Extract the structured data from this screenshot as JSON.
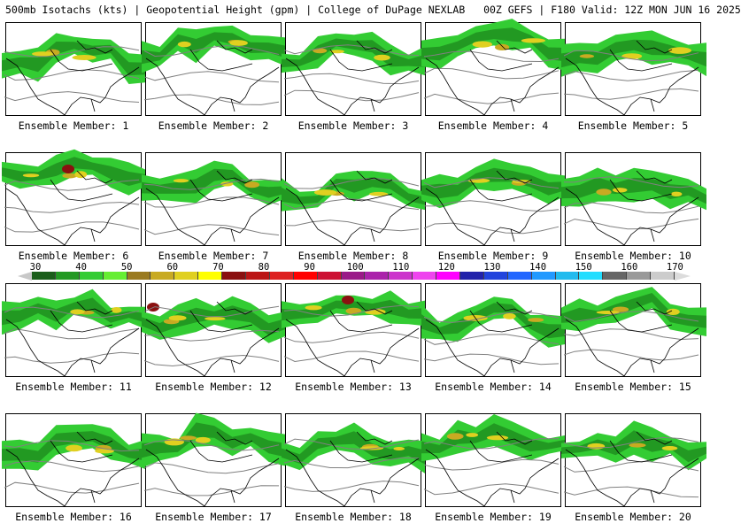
{
  "header": {
    "title": "500mb Isotachs (kts) | Geopotential Height (gpm) | College of DuPage NEXLAB",
    "run": "00Z GEFS | F180 Valid: 12Z MON JUN 16 2025"
  },
  "legend": {
    "ticks": [
      "30",
      "40",
      "50",
      "60",
      "70",
      "80",
      "90",
      "100",
      "110",
      "120",
      "130",
      "140",
      "150",
      "160",
      "170"
    ],
    "colors": [
      "#1a5e1a",
      "#229922",
      "#33cc33",
      "#66ee33",
      "#9a7a20",
      "#c8aa22",
      "#e0d020",
      "#ffff00",
      "#8a1010",
      "#bb1515",
      "#dd2020",
      "#ff0000",
      "#cc1133",
      "#9a1a88",
      "#aa22aa",
      "#cc33cc",
      "#ee44ee",
      "#ff00ff",
      "#2222aa",
      "#2244dd",
      "#2266ff",
      "#2299ff",
      "#22bbee",
      "#22ddff",
      "#666666",
      "#999999",
      "#cccccc"
    ]
  },
  "panels": [
    {
      "label": "Ensemble Member: 1"
    },
    {
      "label": "Ensemble Member: 2"
    },
    {
      "label": "Ensemble Member: 3"
    },
    {
      "label": "Ensemble Member: 4"
    },
    {
      "label": "Ensemble Member: 5"
    },
    {
      "label": "Ensemble Member: 6"
    },
    {
      "label": "Ensemble Member: 7"
    },
    {
      "label": "Ensemble Member: 8"
    },
    {
      "label": "Ensemble Member: 9"
    },
    {
      "label": "Ensemble Member: 10"
    },
    {
      "label": "Ensemble Member: 11"
    },
    {
      "label": "Ensemble Member: 12"
    },
    {
      "label": "Ensemble Member: 13"
    },
    {
      "label": "Ensemble Member: 14"
    },
    {
      "label": "Ensemble Member: 15"
    },
    {
      "label": "Ensemble Member: 16"
    },
    {
      "label": "Ensemble Member: 17"
    },
    {
      "label": "Ensemble Member: 18"
    },
    {
      "label": "Ensemble Member: 19"
    },
    {
      "label": "Ensemble Member: 20"
    }
  ]
}
